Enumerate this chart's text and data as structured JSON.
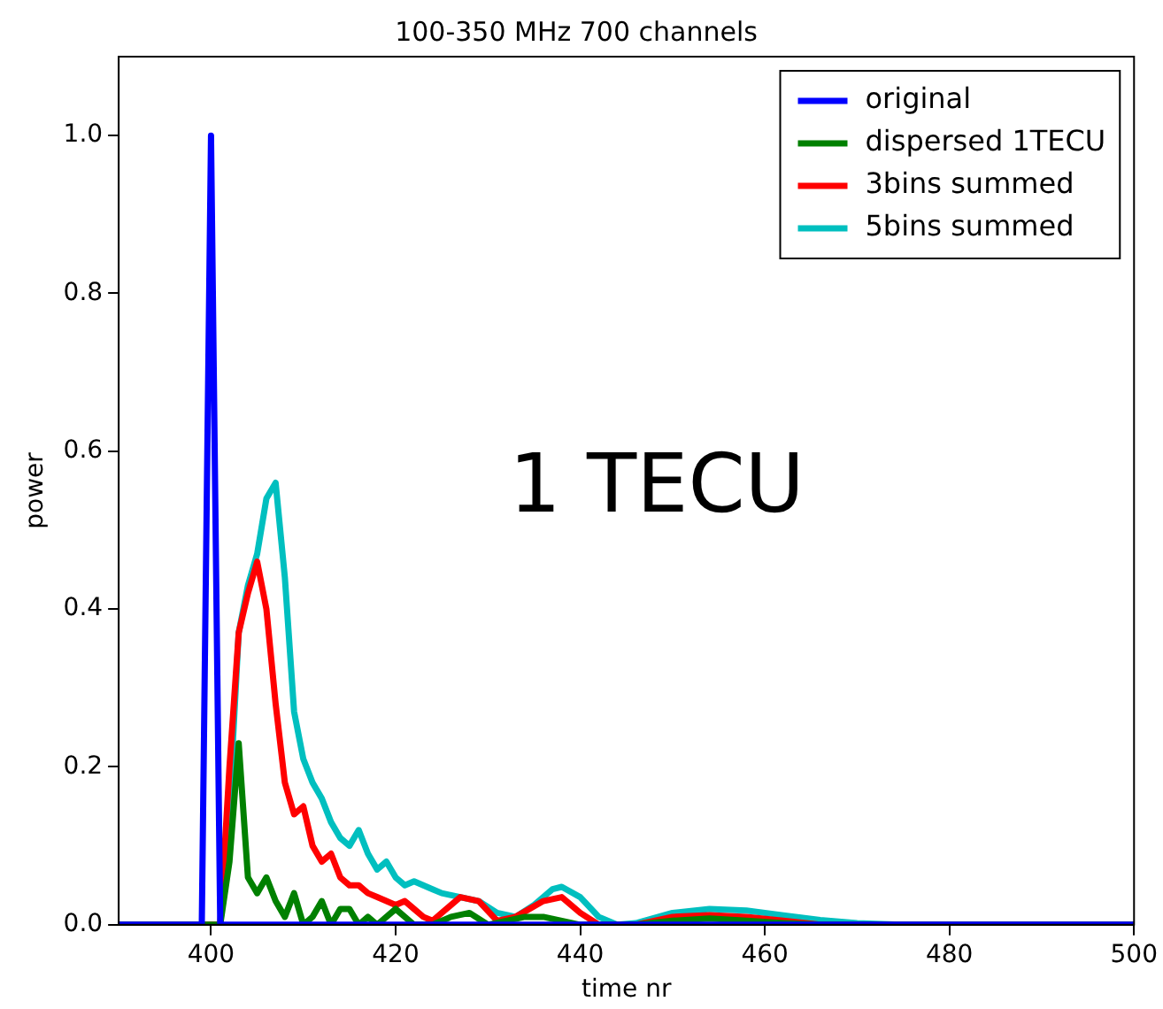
{
  "chart_data": {
    "type": "line",
    "title": "100-350 MHz 700 channels",
    "xlabel": "time nr",
    "ylabel": "power",
    "annotations": [
      "1 TECU"
    ],
    "xlim": [
      390,
      500
    ],
    "xticks": [
      400,
      420,
      440,
      460,
      480,
      500
    ],
    "ylim": [
      0,
      1.1
    ],
    "yticks": [
      {
        "value": 0,
        "label": "0.0"
      },
      0.2,
      0.4,
      0.6,
      0.8,
      {
        "value": 1,
        "label": "1.0"
      }
    ],
    "grid": false,
    "legend": "top right",
    "marker": "none",
    "line_style": "solid",
    "series": [
      {
        "name": "original",
        "color": "#0000ff",
        "x": [
          390,
          399,
          400,
          401,
          500
        ],
        "values": [
          0,
          0,
          1,
          0,
          0
        ]
      },
      {
        "name": "dispersed 1TECU",
        "color": "#008000",
        "x": [
          390,
          401,
          402,
          403,
          404,
          405,
          406,
          407,
          408,
          409,
          410,
          411,
          412,
          413,
          414,
          415,
          416,
          417,
          418,
          420,
          422,
          424,
          426,
          428,
          430,
          432,
          434,
          436,
          438,
          440,
          442,
          446,
          450,
          454,
          458,
          462,
          466,
          500
        ],
        "values": [
          0,
          0,
          0.08,
          0.23,
          0.06,
          0.04,
          0.06,
          0.03,
          0.01,
          0.04,
          0,
          0.01,
          0.03,
          0,
          0.02,
          0.02,
          0,
          0.01,
          0,
          0.02,
          0,
          0,
          0.01,
          0.015,
          0,
          0.005,
          0.01,
          0.01,
          0.005,
          0,
          0,
          0,
          0.005,
          0.008,
          0.005,
          0.002,
          0,
          0
        ]
      },
      {
        "name": "3bins summed",
        "color": "#ff0000",
        "x": [
          390,
          401,
          402,
          403,
          404,
          405,
          406,
          407,
          408,
          409,
          410,
          411,
          412,
          413,
          414,
          415,
          416,
          417,
          418,
          419,
          420,
          421,
          422,
          423,
          424,
          425,
          427,
          429,
          431,
          433,
          436,
          438,
          440,
          442,
          446,
          450,
          454,
          458,
          462,
          466,
          500
        ],
        "values": [
          0,
          0,
          0.2,
          0.37,
          0.42,
          0.46,
          0.4,
          0.28,
          0.18,
          0.14,
          0.15,
          0.1,
          0.08,
          0.09,
          0.06,
          0.05,
          0.05,
          0.04,
          0.035,
          0.03,
          0.025,
          0.03,
          0.02,
          0.01,
          0.005,
          0.015,
          0.035,
          0.03,
          0.005,
          0.01,
          0.03,
          0.035,
          0.015,
          0,
          0,
          0.01,
          0.012,
          0.01,
          0.005,
          0,
          0
        ]
      },
      {
        "name": "5bins summed",
        "color": "#00bfbf",
        "x": [
          390,
          401,
          402,
          403,
          404,
          405,
          406,
          407,
          408,
          409,
          410,
          411,
          412,
          413,
          414,
          415,
          416,
          417,
          418,
          419,
          420,
          421,
          422,
          423,
          424,
          425,
          427,
          429,
          431,
          433,
          435,
          437,
          438,
          440,
          442,
          444,
          446,
          450,
          454,
          458,
          462,
          466,
          470,
          475,
          500
        ],
        "values": [
          0,
          0,
          0.15,
          0.37,
          0.43,
          0.47,
          0.54,
          0.56,
          0.44,
          0.27,
          0.21,
          0.18,
          0.16,
          0.13,
          0.11,
          0.1,
          0.12,
          0.09,
          0.07,
          0.08,
          0.06,
          0.05,
          0.055,
          0.05,
          0.045,
          0.04,
          0.035,
          0.03,
          0.015,
          0.01,
          0.025,
          0.045,
          0.048,
          0.035,
          0.01,
          0,
          0.002,
          0.015,
          0.02,
          0.018,
          0.012,
          0.006,
          0.002,
          0,
          0
        ]
      }
    ]
  }
}
